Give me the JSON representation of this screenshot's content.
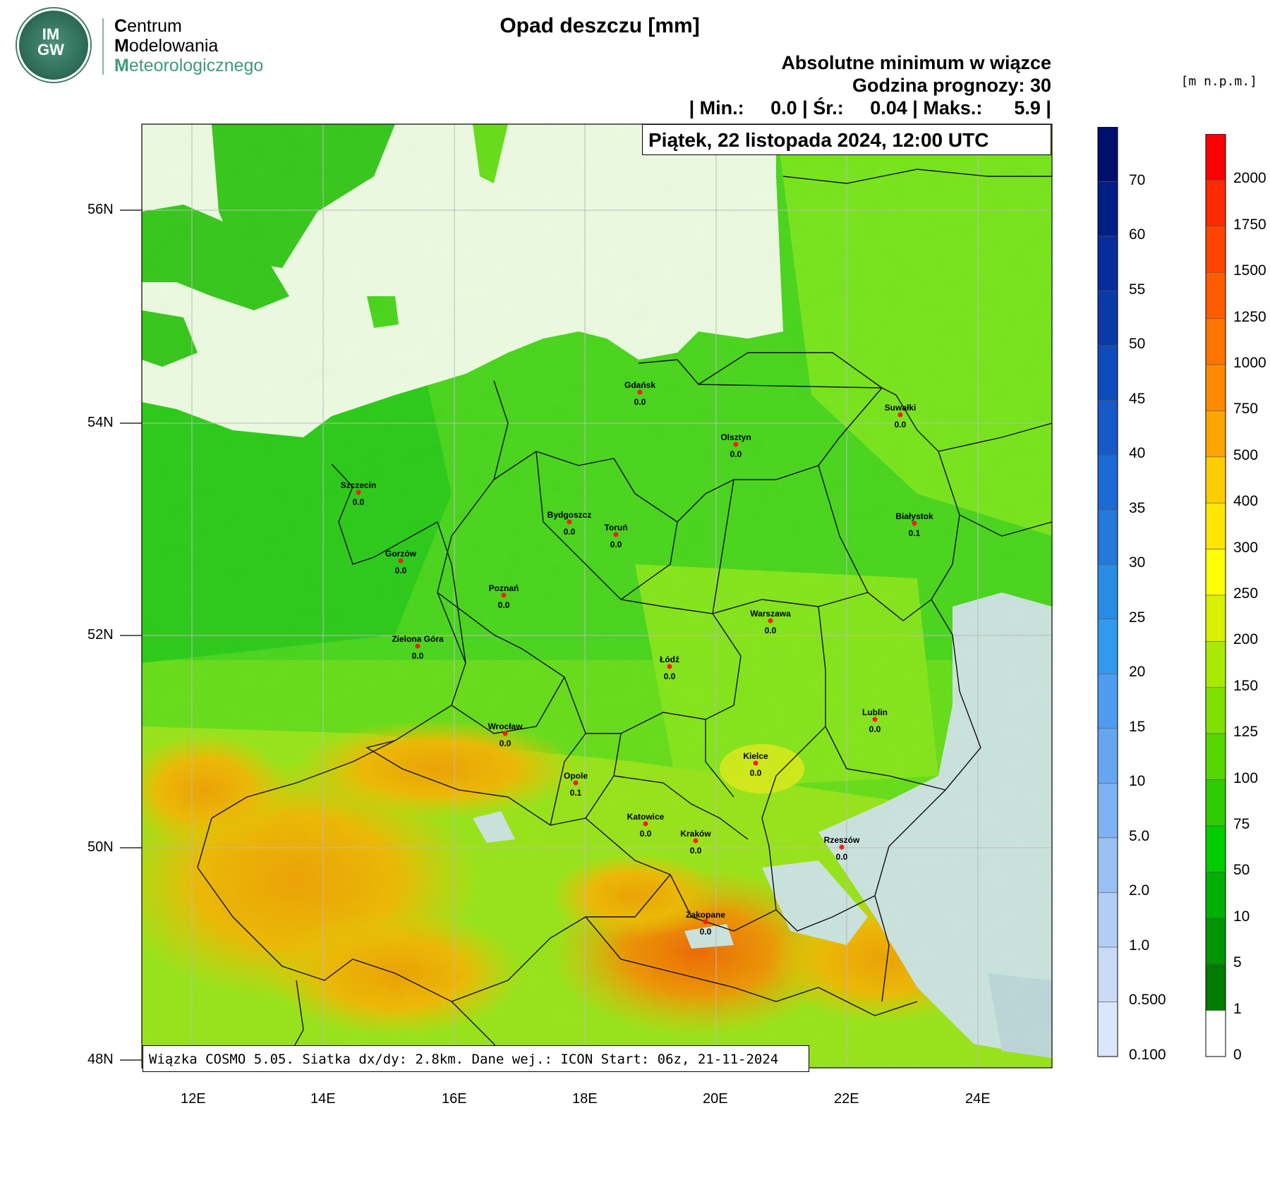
{
  "logo": {
    "letters_top": "IM",
    "letters_bottom": "GW",
    "line1_initial": "C",
    "line1_rest": "entrum",
    "line2_initial": "M",
    "line2_rest": "odelowania",
    "line3_initial": "M",
    "line3_rest": "eteorologicznego"
  },
  "title": "Opad deszczu [mm]",
  "subtitle": "Absolutne minimum w wiązce",
  "forecast_hour": "Godzina prognozy: 30",
  "stats_line": "| Min.:     0.0 | Śr.:     0.04 | Maks.:      5.9 |",
  "date_label": "Piątek, 22 listopada 2024, 12:00 UTC",
  "footer": "Wiązka COSMO 5.05. Siatka dx/dy: 2.8km. Dane wej.: ICON Start: 06z, 21-11-2024",
  "elevation_units": "[m n.p.m.]",
  "axes": {
    "lat_labels": [
      "56N",
      "54N",
      "52N",
      "50N",
      "48N"
    ],
    "lon_labels": [
      "12E",
      "14E",
      "16E",
      "18E",
      "20E",
      "22E",
      "24E"
    ]
  },
  "precip_scale": {
    "labels": [
      "70",
      "60",
      "55",
      "50",
      "45",
      "40",
      "35",
      "30",
      "25",
      "20",
      "15",
      "10",
      "5.0",
      "2.0",
      "1.0",
      "0.500",
      "0.100"
    ],
    "colors": [
      "#000e6e",
      "#001f85",
      "#062c9c",
      "#0a3aa8",
      "#0f4bbb",
      "#1659c7",
      "#1c6ad3",
      "#2379dc",
      "#2a8be5",
      "#3399ee",
      "#4d9cf0",
      "#66a6f0",
      "#7fb2f2",
      "#99c0f3",
      "#b3cef5",
      "#c9daf7",
      "#dce6fa"
    ]
  },
  "elevation_scale": {
    "labels": [
      "2000",
      "1750",
      "1500",
      "1250",
      "1000",
      "750",
      "500",
      "400",
      "300",
      "250",
      "200",
      "150",
      "125",
      "100",
      "75",
      "50",
      "10",
      "5",
      "1",
      "0"
    ],
    "colors": [
      "#ff0000",
      "#ff2a00",
      "#ff4400",
      "#ff5c00",
      "#ff7300",
      "#ff8a00",
      "#ffa500",
      "#ffcc00",
      "#ffe600",
      "#ffff00",
      "#d9f000",
      "#aaea00",
      "#80e000",
      "#55d800",
      "#2ecc00",
      "#00cc00",
      "#00b000",
      "#009400",
      "#007a00",
      "#ffffff"
    ]
  },
  "cities": [
    {
      "name": "Gdańsk",
      "value": "0.0"
    },
    {
      "name": "Suwałki",
      "value": "0.0"
    },
    {
      "name": "Olsztyn",
      "value": "0.0"
    },
    {
      "name": "Szczecin",
      "value": "0.0"
    },
    {
      "name": "Bydgoszcz",
      "value": "0.0"
    },
    {
      "name": "Toruń",
      "value": "0.0"
    },
    {
      "name": "Białystok",
      "value": "0.1"
    },
    {
      "name": "Gorzów",
      "value": "0.0"
    },
    {
      "name": "Poznań",
      "value": "0.0"
    },
    {
      "name": "Warszawa",
      "value": "0.0"
    },
    {
      "name": "Zielona Góra",
      "value": "0.0"
    },
    {
      "name": "Łódź",
      "value": "0.0"
    },
    {
      "name": "Lublin",
      "value": "0.0"
    },
    {
      "name": "Wrocław",
      "value": "0.0"
    },
    {
      "name": "Kielce",
      "value": "0.0"
    },
    {
      "name": "Opole",
      "value": "0.1"
    },
    {
      "name": "Katowice",
      "value": "0.0"
    },
    {
      "name": "Kraków",
      "value": "0.0"
    },
    {
      "name": "Rzeszów",
      "value": "0.0"
    },
    {
      "name": "Zakopane",
      "value": "0.0"
    }
  ]
}
